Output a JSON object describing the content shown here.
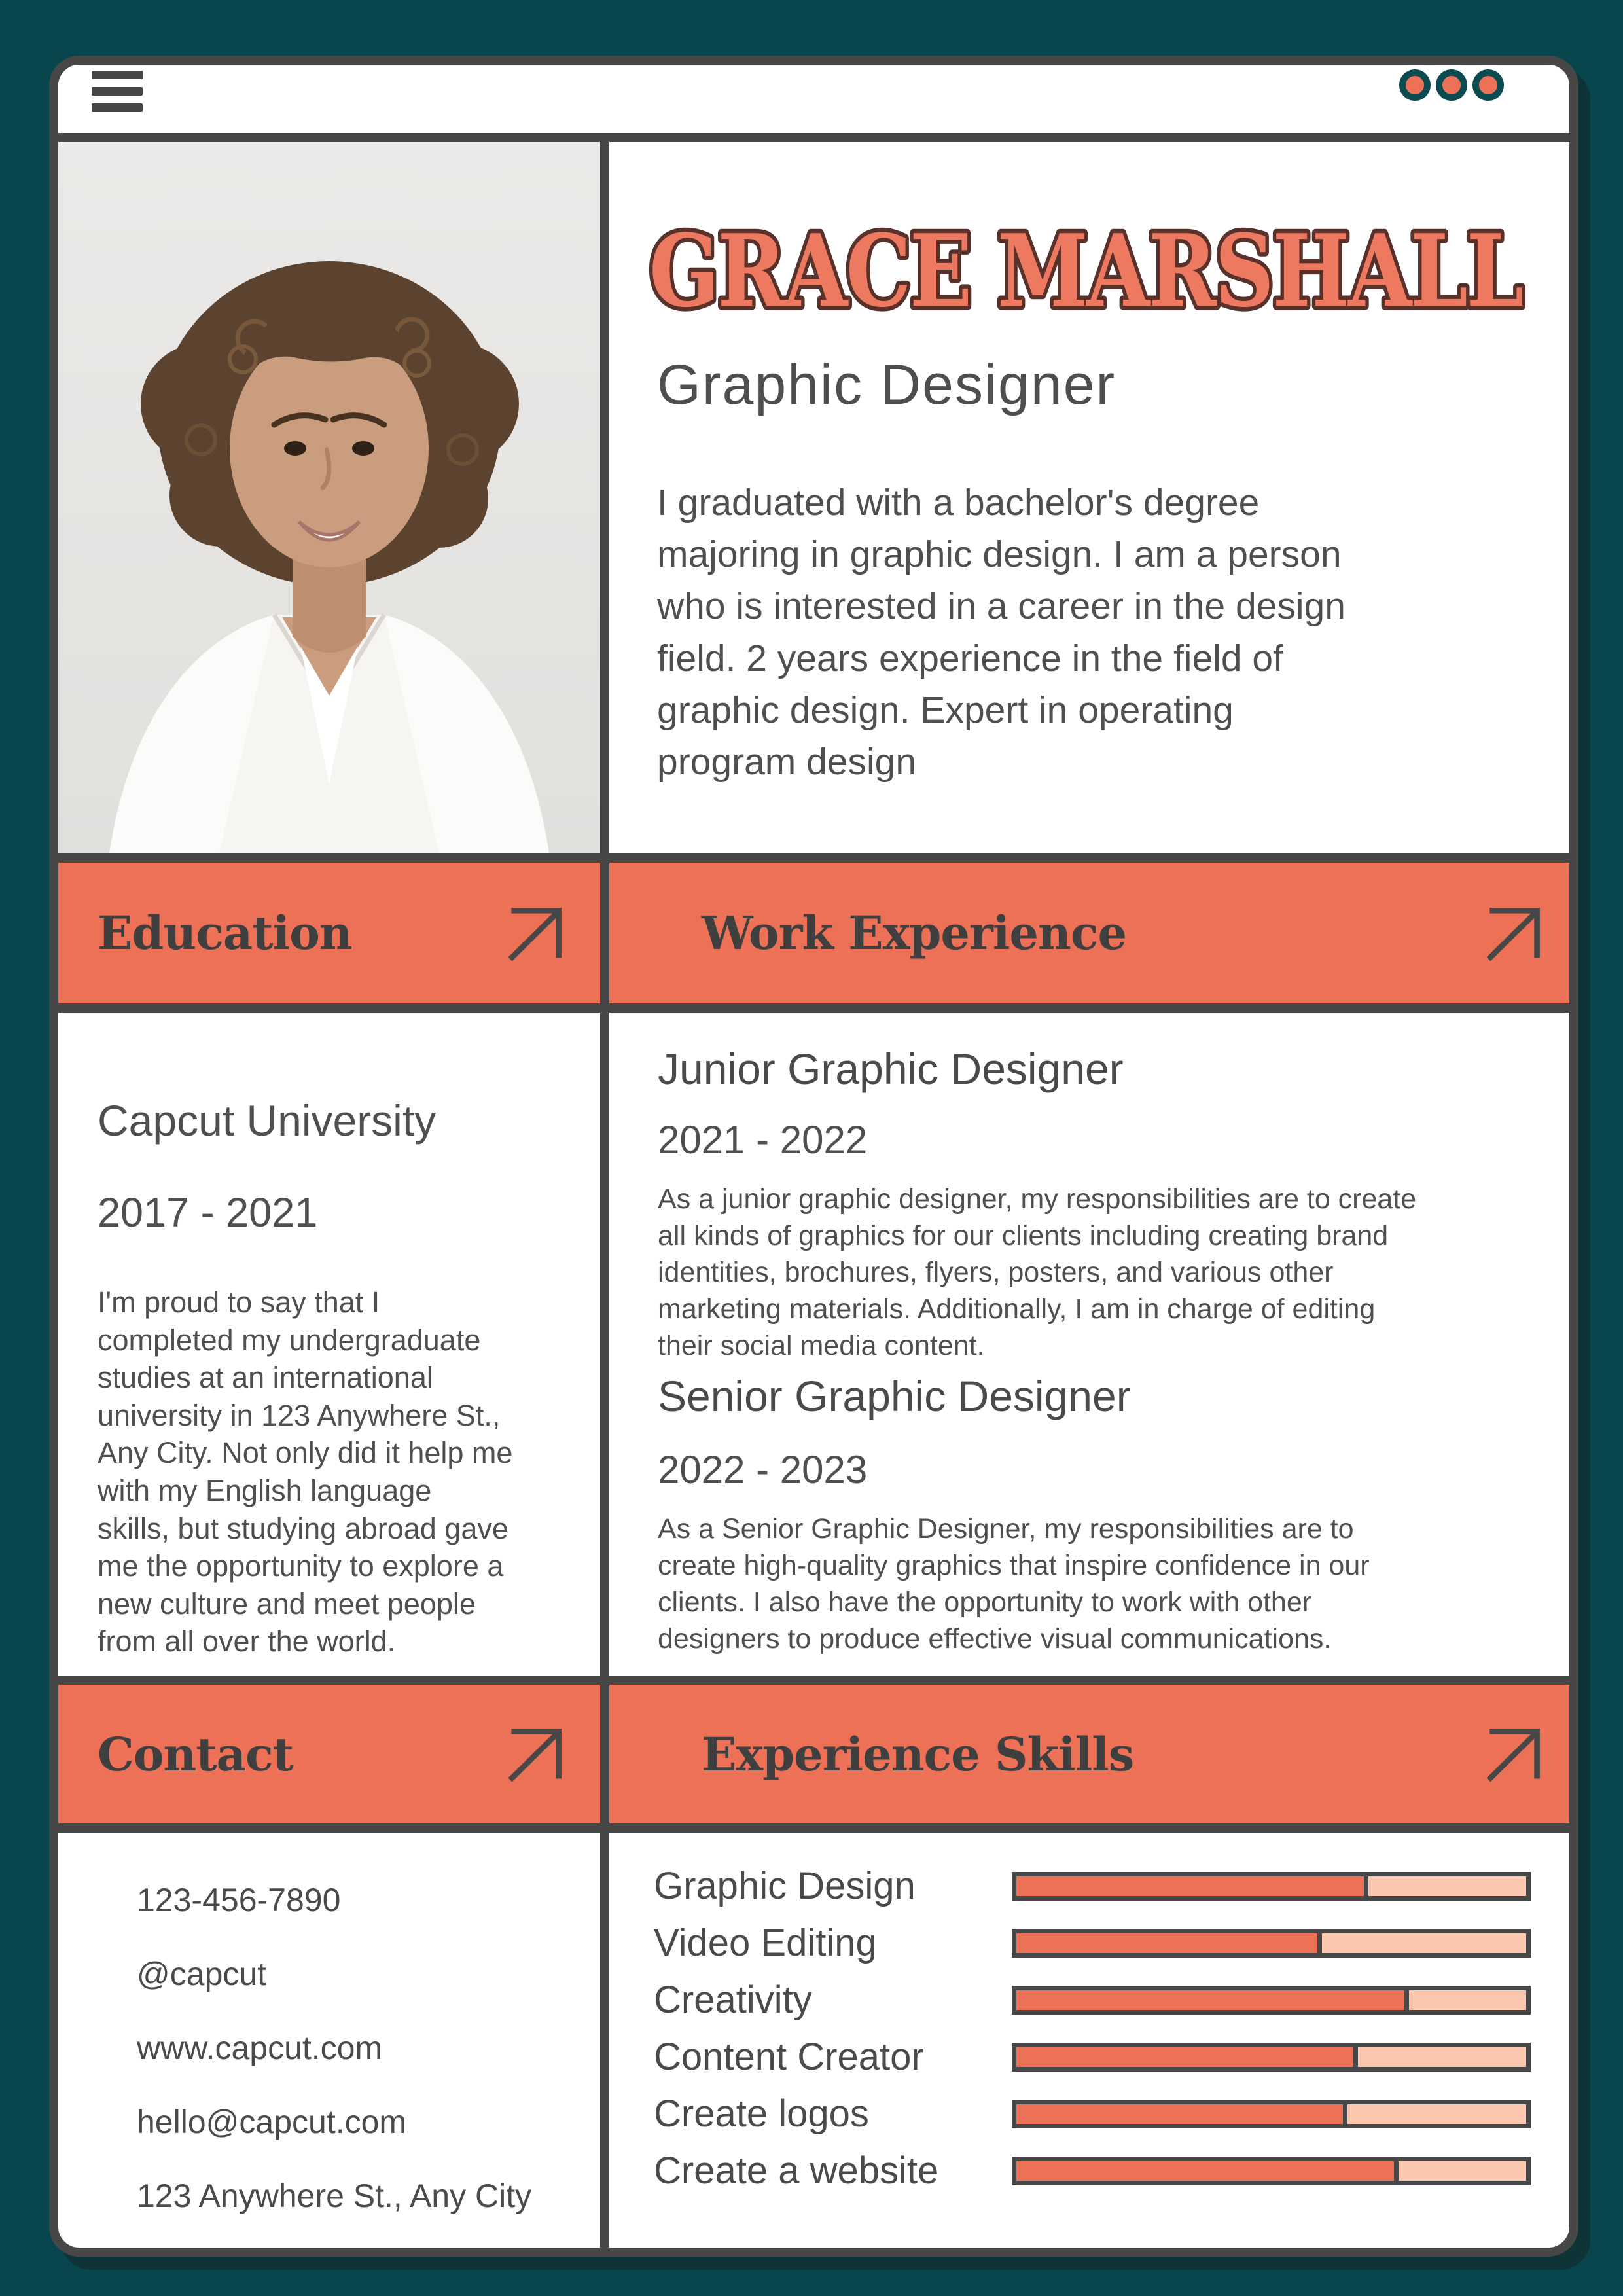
{
  "window": {
    "menu_icon": "hamburger-icon",
    "control_dots": 3
  },
  "profile": {
    "name": "GRACE MARSHALL",
    "title": "Graphic Designer",
    "summary": "I graduated with a bachelor's degree\nmajoring in graphic design. I am a person\nwho is interested in a career in the design\nfield. 2 years experience in the field of\ngraphic design. Expert in operating\nprogram design"
  },
  "education": {
    "heading": "Education",
    "school": "Capcut University",
    "period": "2017 - 2021",
    "description": "I'm proud to say that I\ncompleted my undergraduate\nstudies at an international\nuniversity in 123 Anywhere St.,\nAny City. Not only did it help me\n with my English language\nskills, but studying abroad gave\nme the opportunity to explore a\n new culture and meet people\nfrom all over the world."
  },
  "work": {
    "heading": "Work Experience",
    "jobs": [
      {
        "title": "Junior Graphic Designer",
        "period": "2021 - 2022",
        "description": "As a junior graphic designer, my responsibilities are to create\nall kinds of graphics for our clients including creating brand\nidentities, brochures, flyers, posters, and various other\nmarketing materials. Additionally, I am in charge of editing\ntheir social media content."
      },
      {
        "title": "Senior Graphic Designer",
        "period": "2022 - 2023",
        "description": "As a Senior Graphic Designer, my responsibilities are to\ncreate high-quality graphics that inspire confidence in our\nclients. I also have the opportunity to work with other\ndesigners to produce effective visual communications."
      }
    ]
  },
  "contact": {
    "heading": "Contact",
    "items": [
      "123-456-7890",
      "@capcut",
      "www.capcut.com",
      "hello@capcut.com",
      "123 Anywhere St., Any City"
    ]
  },
  "skills": {
    "heading": "Experience Skills",
    "items": [
      {
        "label": "Graphic Design",
        "percent": 69
      },
      {
        "label": "Video Editing",
        "percent": 60
      },
      {
        "label": "Creativity",
        "percent": 77
      },
      {
        "label": "Content Creator",
        "percent": 67
      },
      {
        "label": "Create logos",
        "percent": 65
      },
      {
        "label": "Create a website",
        "percent": 75
      }
    ]
  },
  "colors": {
    "accent": "#EC7157",
    "accent_light": "#FBC7AF",
    "frame": "#474747",
    "background": "#09454C",
    "name_fill": "#EE7961",
    "name_outline": "#58312B"
  }
}
